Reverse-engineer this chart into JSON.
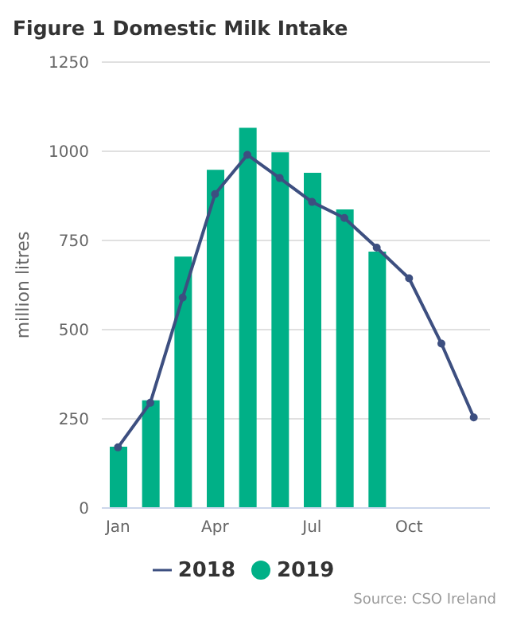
{
  "chart_data": {
    "type": "bar",
    "title": "Figure 1 Domestic Milk Intake",
    "ylabel": "million litres",
    "categories": [
      "Jan",
      null,
      null,
      "Apr",
      null,
      null,
      "Jul",
      null,
      null,
      "Oct",
      null,
      null
    ],
    "series": [
      {
        "name": "2018",
        "type": "line",
        "color": "#3d4f80",
        "values": [
          170,
          295,
          590,
          880,
          990,
          925,
          858,
          813,
          730,
          644,
          461,
          254
        ]
      },
      {
        "name": "2019",
        "color": "#00b087",
        "values": [
          172,
          302,
          705,
          948,
          1066,
          997,
          940,
          837,
          719,
          null,
          null,
          null
        ]
      }
    ],
    "ylim": [
      0,
      1250
    ],
    "yticks": [
      0,
      250,
      500,
      750,
      1000,
      1250
    ],
    "grid": "y",
    "legend": "bottom",
    "marker": "circle",
    "annotations": [
      "Source: CSO Ireland"
    ]
  }
}
